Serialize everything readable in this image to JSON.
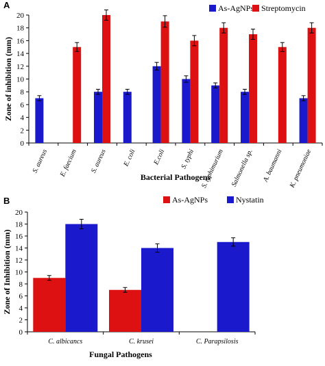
{
  "chart_data": [
    {
      "type": "bar",
      "panel_label": "A",
      "title": "",
      "xlabel": "Bacterial Pathogens",
      "ylabel": "Zone of inhibition (mm)",
      "ylim": [
        0,
        20
      ],
      "yticks": [
        "0",
        "2",
        "4",
        "6",
        "8",
        "10",
        "12",
        "14",
        "16",
        "18",
        "20"
      ],
      "grid": false,
      "legend_position": "top-right",
      "categories": [
        "S. aureus",
        "E. faecium",
        "S. aureus",
        "E. coli",
        "E.coli",
        "S. typhi",
        "S. typhimurium",
        "Salmonella sp.",
        "A. baumanni",
        "K. pneumoniae"
      ],
      "series": [
        {
          "name": "As-AgNPs",
          "color": "#1a1acc",
          "values": [
            7,
            0,
            8,
            8,
            12,
            10,
            9,
            8,
            0,
            7
          ],
          "errors": [
            0.4,
            0,
            0.4,
            0.4,
            0.6,
            0.5,
            0.4,
            0.4,
            0,
            0.4
          ]
        },
        {
          "name": "Streptomycin",
          "color": "#dd1111",
          "values": [
            0,
            15,
            20,
            0,
            19,
            16,
            18,
            17,
            15,
            18
          ],
          "errors": [
            0,
            0.7,
            0.8,
            0,
            0.9,
            0.8,
            0.8,
            0.8,
            0.7,
            0.8
          ]
        }
      ]
    },
    {
      "type": "bar",
      "panel_label": "B",
      "title": "",
      "xlabel": "Fungal Pathogens",
      "ylabel": "Zone of Inhibition (mm)",
      "ylim": [
        0,
        20
      ],
      "yticks": [
        "0",
        "2",
        "4",
        "6",
        "8",
        "10",
        "12",
        "14",
        "16",
        "18",
        "20"
      ],
      "grid": false,
      "legend_position": "top",
      "categories": [
        "C. albicancs",
        "C. krusei",
        "C. Parapsilosis"
      ],
      "series": [
        {
          "name": "As-AgNPs",
          "color": "#dd1111",
          "values": [
            9,
            7,
            0
          ],
          "errors": [
            0.4,
            0.4,
            0
          ]
        },
        {
          "name": "Nystatin",
          "color": "#1a1acc",
          "values": [
            18,
            14,
            15
          ],
          "errors": [
            0.8,
            0.7,
            0.7
          ]
        }
      ]
    }
  ]
}
